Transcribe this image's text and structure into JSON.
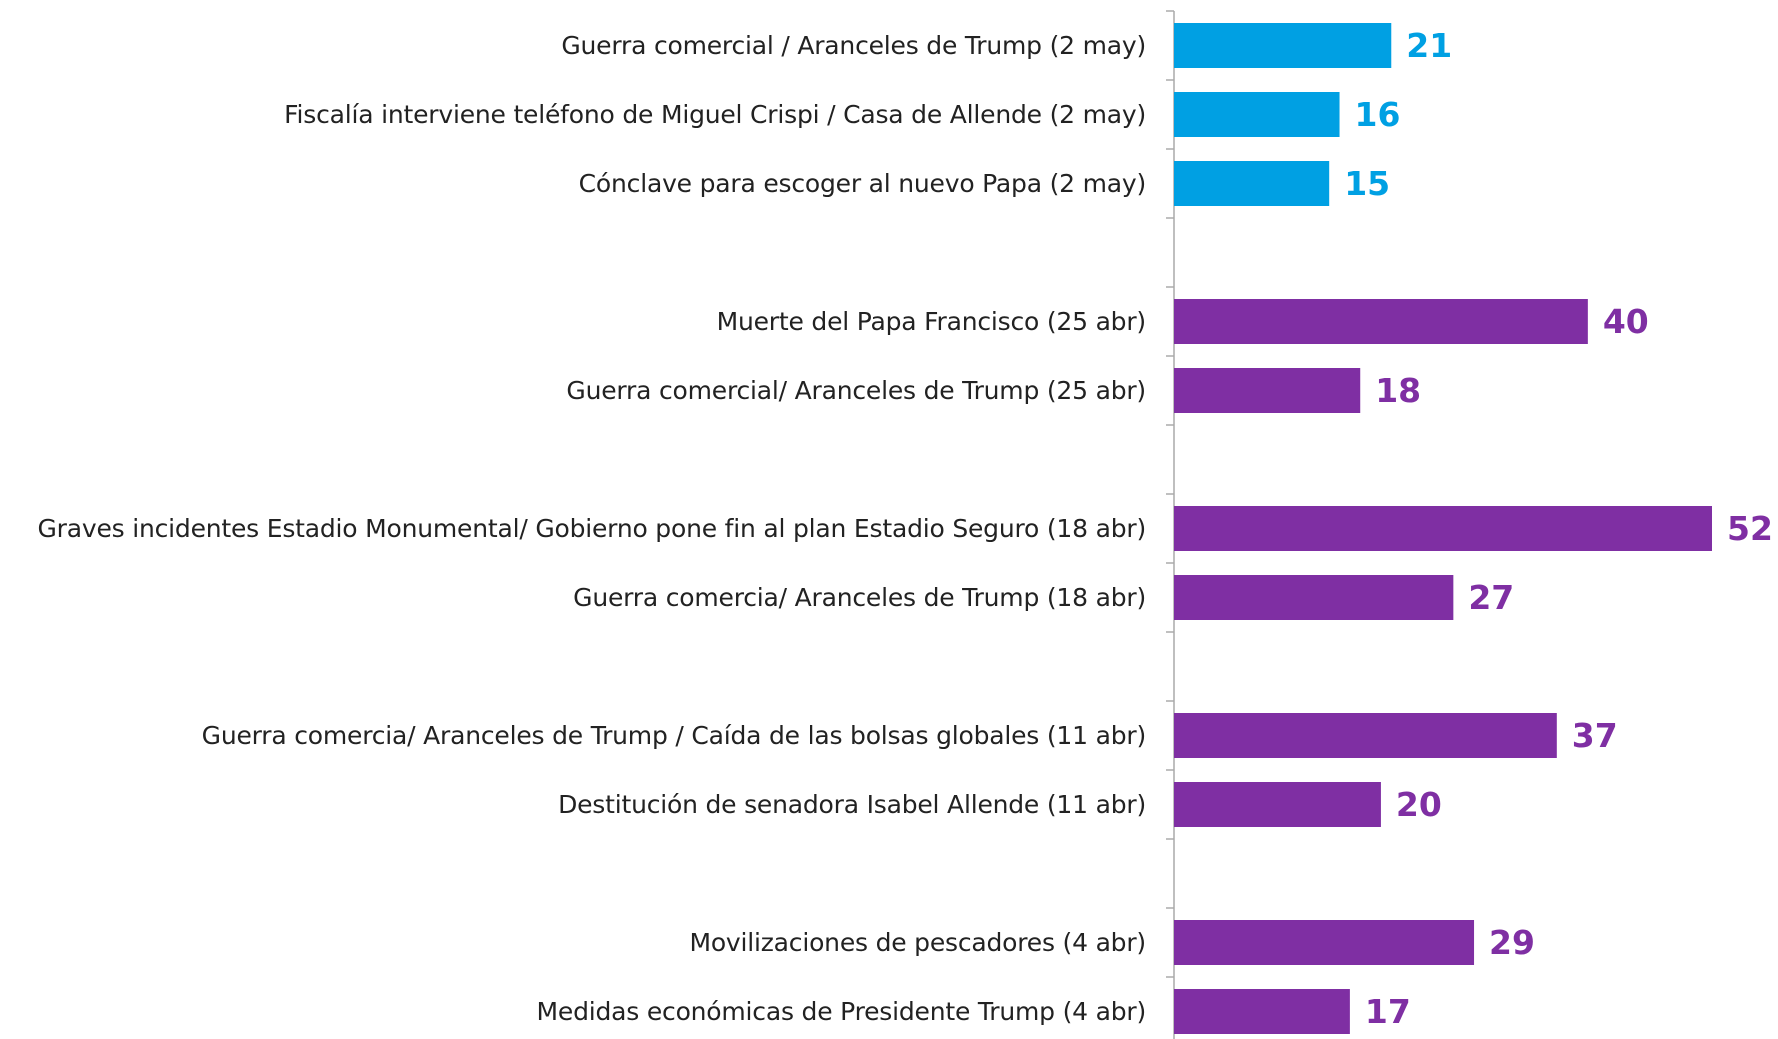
{
  "chart_data": {
    "type": "bar",
    "orientation": "horizontal",
    "categories": [
      "Guerra comercial / Aranceles de Trump (2 may)",
      "Fiscalía interviene teléfono de Miguel Crispi / Casa de Allende (2 may)",
      "Cónclave para escoger al nuevo Papa (2 may)",
      null,
      "Muerte del Papa Francisco (25 abr)",
      "Guerra comercial/ Aranceles de Trump (25 abr)",
      null,
      "Graves incidentes Estadio Monumental/ Gobierno pone fin al plan Estadio Seguro (18 abr)",
      "Guerra comercia/ Aranceles de Trump (18 abr)",
      null,
      "Guerra comercia/ Aranceles de Trump / Caída de las bolsas globales (11 abr)",
      "Destitución de senadora Isabel Allende (11 abr)",
      null,
      "Movilizaciones de pescadores (4 abr)",
      "Medidas económicas de Presidente Trump (4 abr)"
    ],
    "values": [
      21,
      16,
      15,
      null,
      40,
      18,
      null,
      52,
      27,
      null,
      37,
      20,
      null,
      29,
      17
    ],
    "colors": [
      "#00a0e3",
      "#00a0e3",
      "#00a0e3",
      null,
      "#7f2fa3",
      "#7f2fa3",
      null,
      "#7f2fa3",
      "#7f2fa3",
      null,
      "#7f2fa3",
      "#7f2fa3",
      null,
      "#7f2fa3",
      "#7f2fa3"
    ],
    "xlim": [
      0,
      52
    ]
  }
}
